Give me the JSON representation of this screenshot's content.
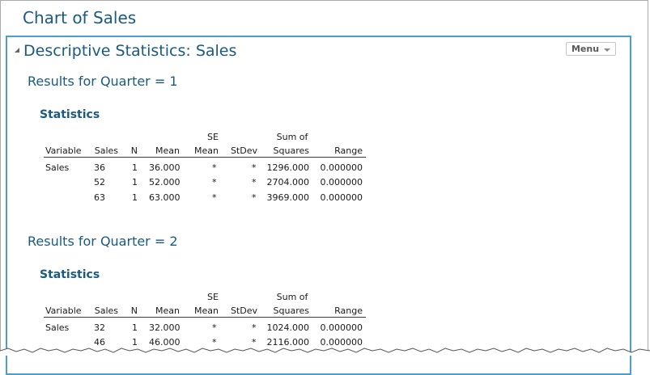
{
  "window_title": "Chart of Sales",
  "panel": {
    "title": "Descriptive Statistics: Sales",
    "menu_label": "Menu"
  },
  "sections": [
    {
      "heading": "Results for Quarter = 1",
      "stats_title": "Statistics",
      "columns": {
        "variable": "Variable",
        "sales": "Sales",
        "n": "N",
        "mean": "Mean",
        "se_mean_line1": "SE",
        "se_mean_line2": "Mean",
        "stdev": "StDev",
        "ss_line1": "Sum of",
        "ss_line2": "Squares",
        "range": "Range"
      },
      "rows": [
        {
          "variable": "Sales",
          "sales": "36",
          "n": "1",
          "mean": "36.000",
          "se_mean": "*",
          "stdev": "*",
          "ss": "1296.000",
          "range": "0.000000"
        },
        {
          "variable": "",
          "sales": "52",
          "n": "1",
          "mean": "52.000",
          "se_mean": "*",
          "stdev": "*",
          "ss": "2704.000",
          "range": "0.000000"
        },
        {
          "variable": "",
          "sales": "63",
          "n": "1",
          "mean": "63.000",
          "se_mean": "*",
          "stdev": "*",
          "ss": "3969.000",
          "range": "0.000000"
        }
      ]
    },
    {
      "heading": "Results for Quarter = 2",
      "stats_title": "Statistics",
      "columns": {
        "variable": "Variable",
        "sales": "Sales",
        "n": "N",
        "mean": "Mean",
        "se_mean_line1": "SE",
        "se_mean_line2": "Mean",
        "stdev": "StDev",
        "ss_line1": "Sum of",
        "ss_line2": "Squares",
        "range": "Range"
      },
      "rows": [
        {
          "variable": "Sales",
          "sales": "32",
          "n": "1",
          "mean": "32.000",
          "se_mean": "*",
          "stdev": "*",
          "ss": "1024.000",
          "range": "0.000000"
        },
        {
          "variable": "",
          "sales": "46",
          "n": "1",
          "mean": "46.000",
          "se_mean": "*",
          "stdev": "*",
          "ss": "2116.000",
          "range": "0.000000"
        }
      ]
    }
  ],
  "colors": {
    "heading": "#1a5a80",
    "panel_border": "#4a9fd0"
  }
}
